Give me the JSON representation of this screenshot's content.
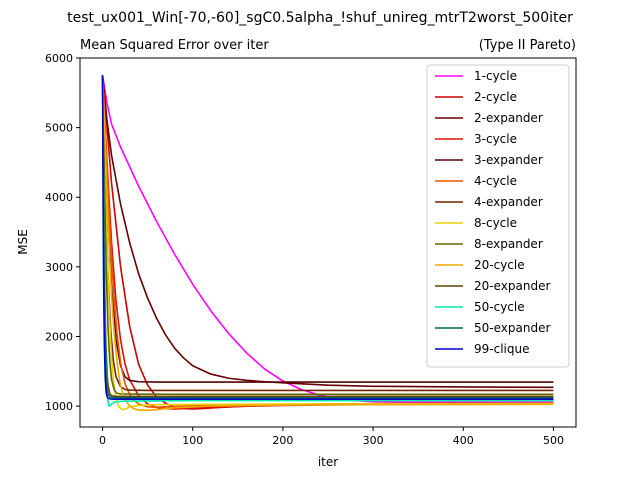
{
  "figure": {
    "suptitle": "test_ux001_Win[-70,-60]_sgC0.5alpha_!shuf_unireg_mtrT2worst_500iter"
  },
  "chart_data": {
    "type": "line",
    "title": "Mean Squared Error over iter",
    "title_right": "(Type II Pareto)",
    "xlabel": "iter",
    "ylabel": "MSE",
    "xlim": [
      -25,
      525
    ],
    "ylim": [
      700,
      6000
    ],
    "xticks": [
      0,
      100,
      200,
      300,
      400,
      500
    ],
    "yticks": [
      1000,
      2000,
      3000,
      4000,
      5000,
      6000
    ],
    "grid": false,
    "legend_position": "top-right",
    "series": [
      {
        "name": "1-cycle",
        "color": "#ff00ff",
        "points": [
          [
            0,
            5750
          ],
          [
            5,
            5350
          ],
          [
            10,
            5050
          ],
          [
            20,
            4720
          ],
          [
            40,
            4160
          ],
          [
            60,
            3650
          ],
          [
            80,
            3180
          ],
          [
            100,
            2750
          ],
          [
            120,
            2370
          ],
          [
            140,
            2040
          ],
          [
            160,
            1760
          ],
          [
            180,
            1530
          ],
          [
            200,
            1360
          ],
          [
            220,
            1240
          ],
          [
            240,
            1160
          ],
          [
            260,
            1110
          ],
          [
            280,
            1080
          ],
          [
            300,
            1065
          ],
          [
            350,
            1055
          ],
          [
            400,
            1055
          ],
          [
            500,
            1055
          ]
        ]
      },
      {
        "name": "2-cycle",
        "color": "#cc0000",
        "points": [
          [
            0,
            5750
          ],
          [
            5,
            5000
          ],
          [
            10,
            4200
          ],
          [
            20,
            3000
          ],
          [
            30,
            2150
          ],
          [
            40,
            1600
          ],
          [
            50,
            1300
          ],
          [
            60,
            1130
          ],
          [
            70,
            1040
          ],
          [
            80,
            990
          ],
          [
            90,
            965
          ],
          [
            100,
            960
          ],
          [
            110,
            965
          ],
          [
            130,
            980
          ],
          [
            160,
            1000
          ],
          [
            200,
            1020
          ],
          [
            250,
            1030
          ],
          [
            300,
            1035
          ],
          [
            400,
            1040
          ],
          [
            500,
            1040
          ]
        ]
      },
      {
        "name": "2-expander",
        "color": "#660000",
        "points": [
          [
            0,
            5750
          ],
          [
            5,
            5100
          ],
          [
            10,
            4600
          ],
          [
            20,
            3900
          ],
          [
            30,
            3350
          ],
          [
            40,
            2900
          ],
          [
            50,
            2550
          ],
          [
            60,
            2260
          ],
          [
            70,
            2020
          ],
          [
            80,
            1830
          ],
          [
            90,
            1690
          ],
          [
            100,
            1580
          ],
          [
            120,
            1460
          ],
          [
            140,
            1400
          ],
          [
            160,
            1370
          ],
          [
            180,
            1350
          ],
          [
            200,
            1335
          ],
          [
            250,
            1300
          ],
          [
            300,
            1285
          ],
          [
            400,
            1275
          ],
          [
            500,
            1270
          ]
        ]
      },
      {
        "name": "3-cycle",
        "color": "#dd1100",
        "points": [
          [
            0,
            5750
          ],
          [
            5,
            4500
          ],
          [
            10,
            3350
          ],
          [
            15,
            2500
          ],
          [
            20,
            1950
          ],
          [
            25,
            1600
          ],
          [
            30,
            1380
          ],
          [
            40,
            1150
          ],
          [
            50,
            1030
          ],
          [
            60,
            980
          ],
          [
            70,
            965
          ],
          [
            80,
            960
          ],
          [
            90,
            965
          ],
          [
            110,
            975
          ],
          [
            150,
            995
          ],
          [
            200,
            1010
          ],
          [
            300,
            1025
          ],
          [
            400,
            1030
          ],
          [
            500,
            1035
          ]
        ]
      },
      {
        "name": "3-expander",
        "color": "#550000",
        "points": [
          [
            0,
            5750
          ],
          [
            5,
            4000
          ],
          [
            10,
            2700
          ],
          [
            15,
            1950
          ],
          [
            20,
            1580
          ],
          [
            25,
            1420
          ],
          [
            30,
            1370
          ],
          [
            40,
            1350
          ],
          [
            60,
            1345
          ],
          [
            100,
            1345
          ],
          [
            200,
            1345
          ],
          [
            300,
            1345
          ],
          [
            400,
            1345
          ],
          [
            500,
            1345
          ]
        ]
      },
      {
        "name": "4-cycle",
        "color": "#e85500",
        "points": [
          [
            0,
            5750
          ],
          [
            4,
            4700
          ],
          [
            8,
            3600
          ],
          [
            12,
            2700
          ],
          [
            16,
            2050
          ],
          [
            20,
            1620
          ],
          [
            25,
            1320
          ],
          [
            30,
            1170
          ],
          [
            35,
            1080
          ],
          [
            40,
            1030
          ],
          [
            50,
            990
          ],
          [
            60,
            985
          ],
          [
            80,
            995
          ],
          [
            120,
            1010
          ],
          [
            200,
            1025
          ],
          [
            300,
            1035
          ],
          [
            500,
            1040
          ]
        ]
      },
      {
        "name": "4-expander",
        "color": "#772200",
        "points": [
          [
            0,
            5750
          ],
          [
            3,
            4200
          ],
          [
            6,
            2900
          ],
          [
            9,
            2100
          ],
          [
            12,
            1650
          ],
          [
            15,
            1420
          ],
          [
            20,
            1280
          ],
          [
            25,
            1240
          ],
          [
            30,
            1230
          ],
          [
            50,
            1225
          ],
          [
            100,
            1225
          ],
          [
            500,
            1225
          ]
        ]
      },
      {
        "name": "8-cycle",
        "color": "#e8d000",
        "points": [
          [
            0,
            5750
          ],
          [
            2,
            4700
          ],
          [
            4,
            3700
          ],
          [
            6,
            2850
          ],
          [
            8,
            2200
          ],
          [
            10,
            1700
          ],
          [
            12,
            1380
          ],
          [
            15,
            1110
          ],
          [
            18,
            990
          ],
          [
            22,
            950
          ],
          [
            26,
            960
          ],
          [
            30,
            990
          ],
          [
            40,
            1010
          ],
          [
            60,
            1020
          ],
          [
            100,
            1025
          ],
          [
            200,
            1030
          ],
          [
            500,
            1035
          ]
        ]
      },
      {
        "name": "8-expander",
        "color": "#666600",
        "points": [
          [
            0,
            5750
          ],
          [
            2,
            4300
          ],
          [
            4,
            3000
          ],
          [
            6,
            2150
          ],
          [
            8,
            1650
          ],
          [
            10,
            1380
          ],
          [
            13,
            1230
          ],
          [
            16,
            1185
          ],
          [
            20,
            1175
          ],
          [
            40,
            1172
          ],
          [
            100,
            1170
          ],
          [
            500,
            1170
          ]
        ]
      },
      {
        "name": "20-cycle",
        "color": "#f0a800",
        "points": [
          [
            0,
            5750
          ],
          [
            2,
            5100
          ],
          [
            4,
            4400
          ],
          [
            6,
            3700
          ],
          [
            8,
            3100
          ],
          [
            10,
            2600
          ],
          [
            12,
            2200
          ],
          [
            14,
            1900
          ],
          [
            16,
            1650
          ],
          [
            18,
            1450
          ],
          [
            20,
            1300
          ],
          [
            22,
            1200
          ],
          [
            25,
            1100
          ],
          [
            30,
            1000
          ],
          [
            35,
            960
          ],
          [
            40,
            945
          ],
          [
            50,
            940
          ],
          [
            60,
            950
          ],
          [
            80,
            975
          ],
          [
            120,
            1000
          ],
          [
            200,
            1015
          ],
          [
            300,
            1020
          ],
          [
            500,
            1025
          ]
        ]
      },
      {
        "name": "20-expander",
        "color": "#664400",
        "points": [
          [
            0,
            5750
          ],
          [
            1,
            4200
          ],
          [
            2,
            3100
          ],
          [
            3,
            2300
          ],
          [
            4,
            1800
          ],
          [
            5,
            1480
          ],
          [
            6,
            1300
          ],
          [
            8,
            1180
          ],
          [
            10,
            1150
          ],
          [
            15,
            1140
          ],
          [
            50,
            1140
          ],
          [
            500,
            1140
          ]
        ]
      },
      {
        "name": "50-cycle",
        "color": "#00e8b0",
        "points": [
          [
            0,
            5750
          ],
          [
            1,
            4100
          ],
          [
            2,
            2900
          ],
          [
            3,
            2100
          ],
          [
            4,
            1550
          ],
          [
            5,
            1250
          ],
          [
            6,
            1080
          ],
          [
            7,
            1010
          ],
          [
            8,
            1000
          ],
          [
            10,
            1030
          ],
          [
            14,
            1060
          ],
          [
            20,
            1070
          ],
          [
            50,
            1075
          ],
          [
            100,
            1080
          ],
          [
            500,
            1080
          ]
        ]
      },
      {
        "name": "50-expander",
        "color": "#006655",
        "points": [
          [
            0,
            5750
          ],
          [
            1,
            3900
          ],
          [
            2,
            2650
          ],
          [
            3,
            1900
          ],
          [
            4,
            1450
          ],
          [
            5,
            1250
          ],
          [
            6,
            1175
          ],
          [
            8,
            1135
          ],
          [
            10,
            1125
          ],
          [
            20,
            1120
          ],
          [
            100,
            1120
          ],
          [
            500,
            1120
          ]
        ]
      },
      {
        "name": "99-clique",
        "color": "#0000cc",
        "points": [
          [
            0,
            5750
          ],
          [
            0.5,
            4200
          ],
          [
            1,
            3100
          ],
          [
            1.5,
            2400
          ],
          [
            2,
            1900
          ],
          [
            3,
            1400
          ],
          [
            4,
            1200
          ],
          [
            5,
            1140
          ],
          [
            6,
            1115
          ],
          [
            8,
            1105
          ],
          [
            10,
            1100
          ],
          [
            20,
            1100
          ],
          [
            100,
            1100
          ],
          [
            500,
            1100
          ]
        ]
      }
    ]
  }
}
